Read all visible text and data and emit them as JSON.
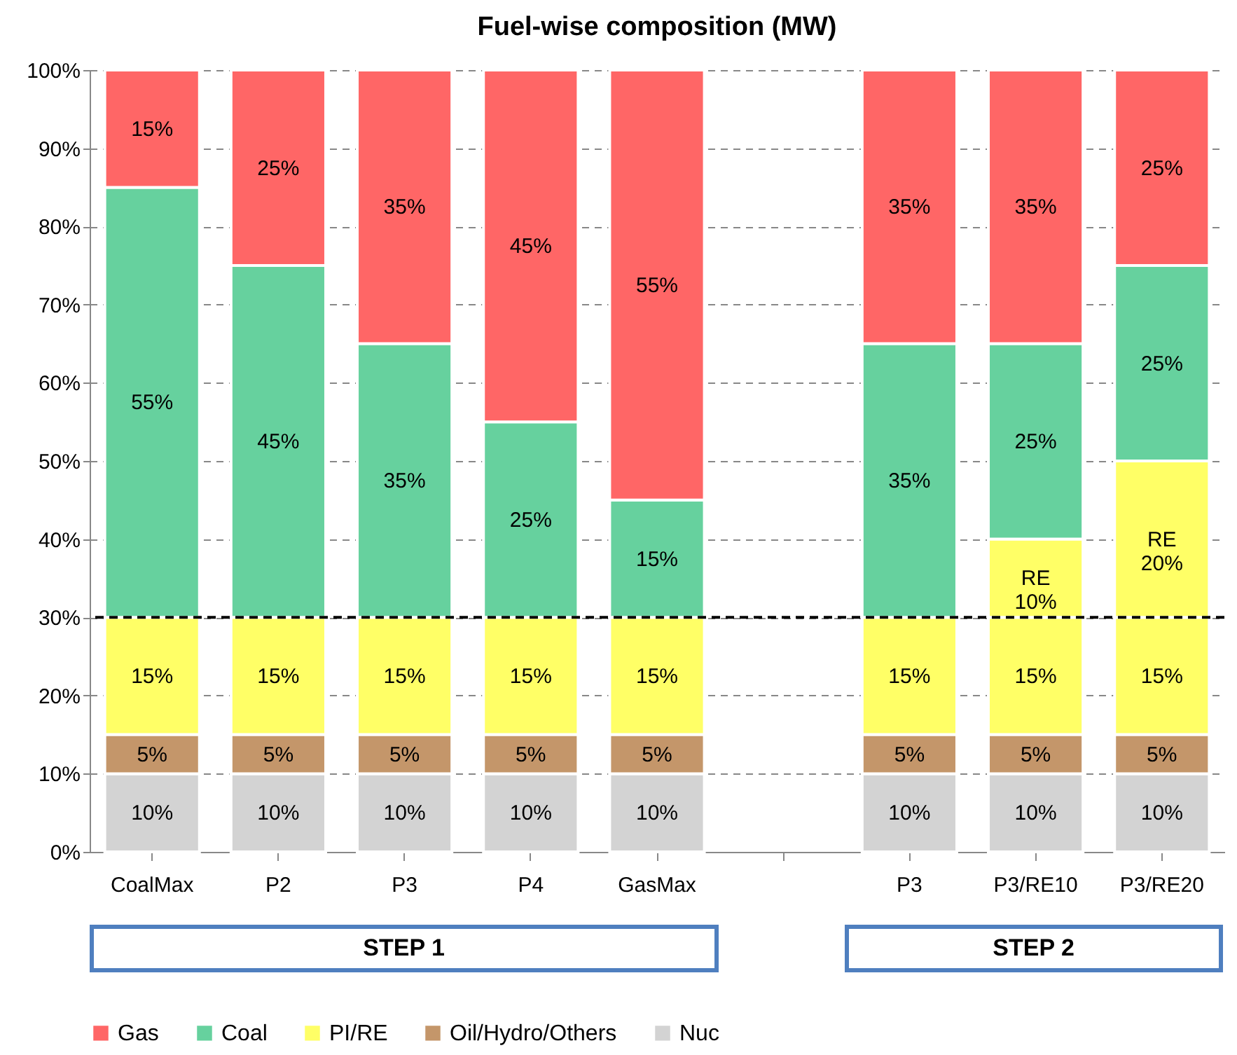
{
  "chart_data": {
    "type": "bar",
    "title": "Fuel-wise composition (MW)",
    "stacked": true,
    "categories": [
      "CoalMax",
      "P2",
      "P3",
      "P4",
      "GasMax",
      null,
      "P3",
      "P3/RE10",
      "P3/RE20"
    ],
    "series": [
      {
        "name": "Nuc",
        "color": "#d3d3d3",
        "values": [
          10,
          10,
          10,
          10,
          10,
          null,
          10,
          10,
          10
        ],
        "value_labels": [
          "10%",
          "10%",
          "10%",
          "10%",
          "10%",
          null,
          "10%",
          "10%",
          "10%"
        ]
      },
      {
        "name": "Oil/Hydro/Others",
        "color": "#c4966a",
        "values": [
          5,
          5,
          5,
          5,
          5,
          null,
          5,
          5,
          5
        ],
        "value_labels": [
          "5%",
          "5%",
          "5%",
          "5%",
          "5%",
          null,
          "5%",
          "5%",
          "5%"
        ]
      },
      {
        "name": "PI/RE",
        "color": "#ffff66",
        "values": [
          15,
          15,
          15,
          15,
          15,
          null,
          15,
          15,
          15
        ],
        "value_labels": [
          "15%",
          "15%",
          "15%",
          "15%",
          "15%",
          null,
          "15%",
          "15%",
          "15%"
        ]
      },
      {
        "color": "#ffff66",
        "values": [
          null,
          null,
          null,
          null,
          null,
          null,
          null,
          10,
          20
        ],
        "value_labels": [
          null,
          null,
          null,
          null,
          null,
          null,
          null,
          "RE\n10%",
          "RE\n20%"
        ]
      },
      {
        "name": "Coal",
        "color": "#66d19e",
        "values": [
          55,
          45,
          35,
          25,
          15,
          null,
          35,
          25,
          25
        ],
        "value_labels": [
          "55%",
          "45%",
          "35%",
          "25%",
          "15%",
          null,
          "35%",
          "25%",
          "25%"
        ]
      },
      {
        "name": "Gas",
        "color": "#ff6666",
        "values": [
          15,
          25,
          35,
          45,
          55,
          null,
          35,
          35,
          25
        ],
        "value_labels": [
          "15%",
          "25%",
          "35%",
          "45%",
          "55%",
          null,
          "35%",
          "35%",
          "25%"
        ]
      }
    ],
    "ylim": [
      0,
      100
    ],
    "yticks": [
      {
        "value": 0,
        "label": "0%"
      },
      {
        "value": 10,
        "label": "10%"
      },
      {
        "value": 20,
        "label": "20%"
      },
      {
        "value": 30,
        "label": "30%"
      },
      {
        "value": 40,
        "label": "40%"
      },
      {
        "value": 50,
        "label": "50%"
      },
      {
        "value": 60,
        "label": "60%"
      },
      {
        "value": 70,
        "label": "70%"
      },
      {
        "value": 80,
        "label": "80%"
      },
      {
        "value": 90,
        "label": "90%"
      },
      {
        "value": 100,
        "label": "100%"
      }
    ],
    "grid": "y",
    "legend": "bottom",
    "ref_lines": [
      {
        "axis": "y",
        "value": 30,
        "color": "#000000",
        "line_style": "dashed"
      }
    ],
    "annotations": [
      "STEP 1",
      "STEP 2"
    ]
  }
}
